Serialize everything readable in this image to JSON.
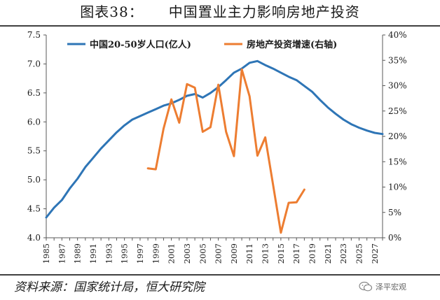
{
  "page": {
    "title_prefix": "图表38：",
    "title_main": "中国置业主力影响房地产投资",
    "source": "资料来源：国家统计局，恒大研究院",
    "watermark": "泽平宏观",
    "watermark_icon": "wechat-icon"
  },
  "chart_data": {
    "type": "line",
    "legend_placement": "top-left",
    "grid": false,
    "x_ticks": [
      "1985",
      "1987",
      "1989",
      "1991",
      "1993",
      "1995",
      "1997",
      "1999",
      "2001",
      "2003",
      "2005",
      "2007",
      "2009",
      "2011",
      "2013",
      "2015",
      "2017",
      "2019",
      "2021",
      "2023",
      "2025",
      "2027"
    ],
    "x_range": [
      1985,
      2028
    ],
    "y_left": {
      "range": [
        4.0,
        7.5
      ],
      "ticks": [
        "4.0",
        "4.5",
        "5.0",
        "5.5",
        "6.0",
        "6.5",
        "7.0",
        "7.5"
      ]
    },
    "y_right": {
      "range": [
        0,
        40
      ],
      "ticks": [
        "0%",
        "5%",
        "10%",
        "15%",
        "20%",
        "25%",
        "30%",
        "35%",
        "40%"
      ]
    },
    "series": [
      {
        "name": "中国20-50岁人口(亿人)",
        "axis": "left",
        "color": "#2e75b6",
        "x": [
          1985,
          1986,
          1987,
          1988,
          1989,
          1990,
          1991,
          1992,
          1993,
          1994,
          1995,
          1996,
          1997,
          1998,
          1999,
          2000,
          2001,
          2002,
          2003,
          2004,
          2005,
          2006,
          2007,
          2008,
          2009,
          2010,
          2011,
          2012,
          2013,
          2014,
          2015,
          2016,
          2017,
          2018,
          2019,
          2020,
          2021,
          2022,
          2023,
          2024,
          2025,
          2026,
          2027,
          2028
        ],
        "y": [
          4.35,
          4.52,
          4.65,
          4.85,
          5.02,
          5.22,
          5.38,
          5.54,
          5.68,
          5.82,
          5.94,
          6.04,
          6.1,
          6.16,
          6.22,
          6.28,
          6.32,
          6.38,
          6.45,
          6.48,
          6.42,
          6.5,
          6.6,
          6.72,
          6.85,
          6.92,
          7.02,
          7.05,
          6.98,
          6.92,
          6.85,
          6.78,
          6.72,
          6.62,
          6.52,
          6.38,
          6.25,
          6.14,
          6.04,
          5.96,
          5.9,
          5.85,
          5.81,
          5.79
        ]
      },
      {
        "name": "房地产投资增速(右轴)",
        "axis": "right",
        "color": "#ed7d31",
        "x": [
          1998,
          1999,
          2000,
          2001,
          2002,
          2003,
          2004,
          2005,
          2006,
          2007,
          2008,
          2009,
          2010,
          2011,
          2012,
          2013,
          2014,
          2015,
          2016,
          2017,
          2018
        ],
        "y": [
          13.7,
          13.5,
          21.5,
          27.3,
          22.7,
          30.3,
          29.6,
          20.9,
          21.8,
          30.2,
          20.9,
          16.1,
          33.2,
          27.9,
          16.2,
          19.8,
          10.5,
          1.0,
          6.9,
          7.0,
          9.5
        ]
      }
    ]
  }
}
